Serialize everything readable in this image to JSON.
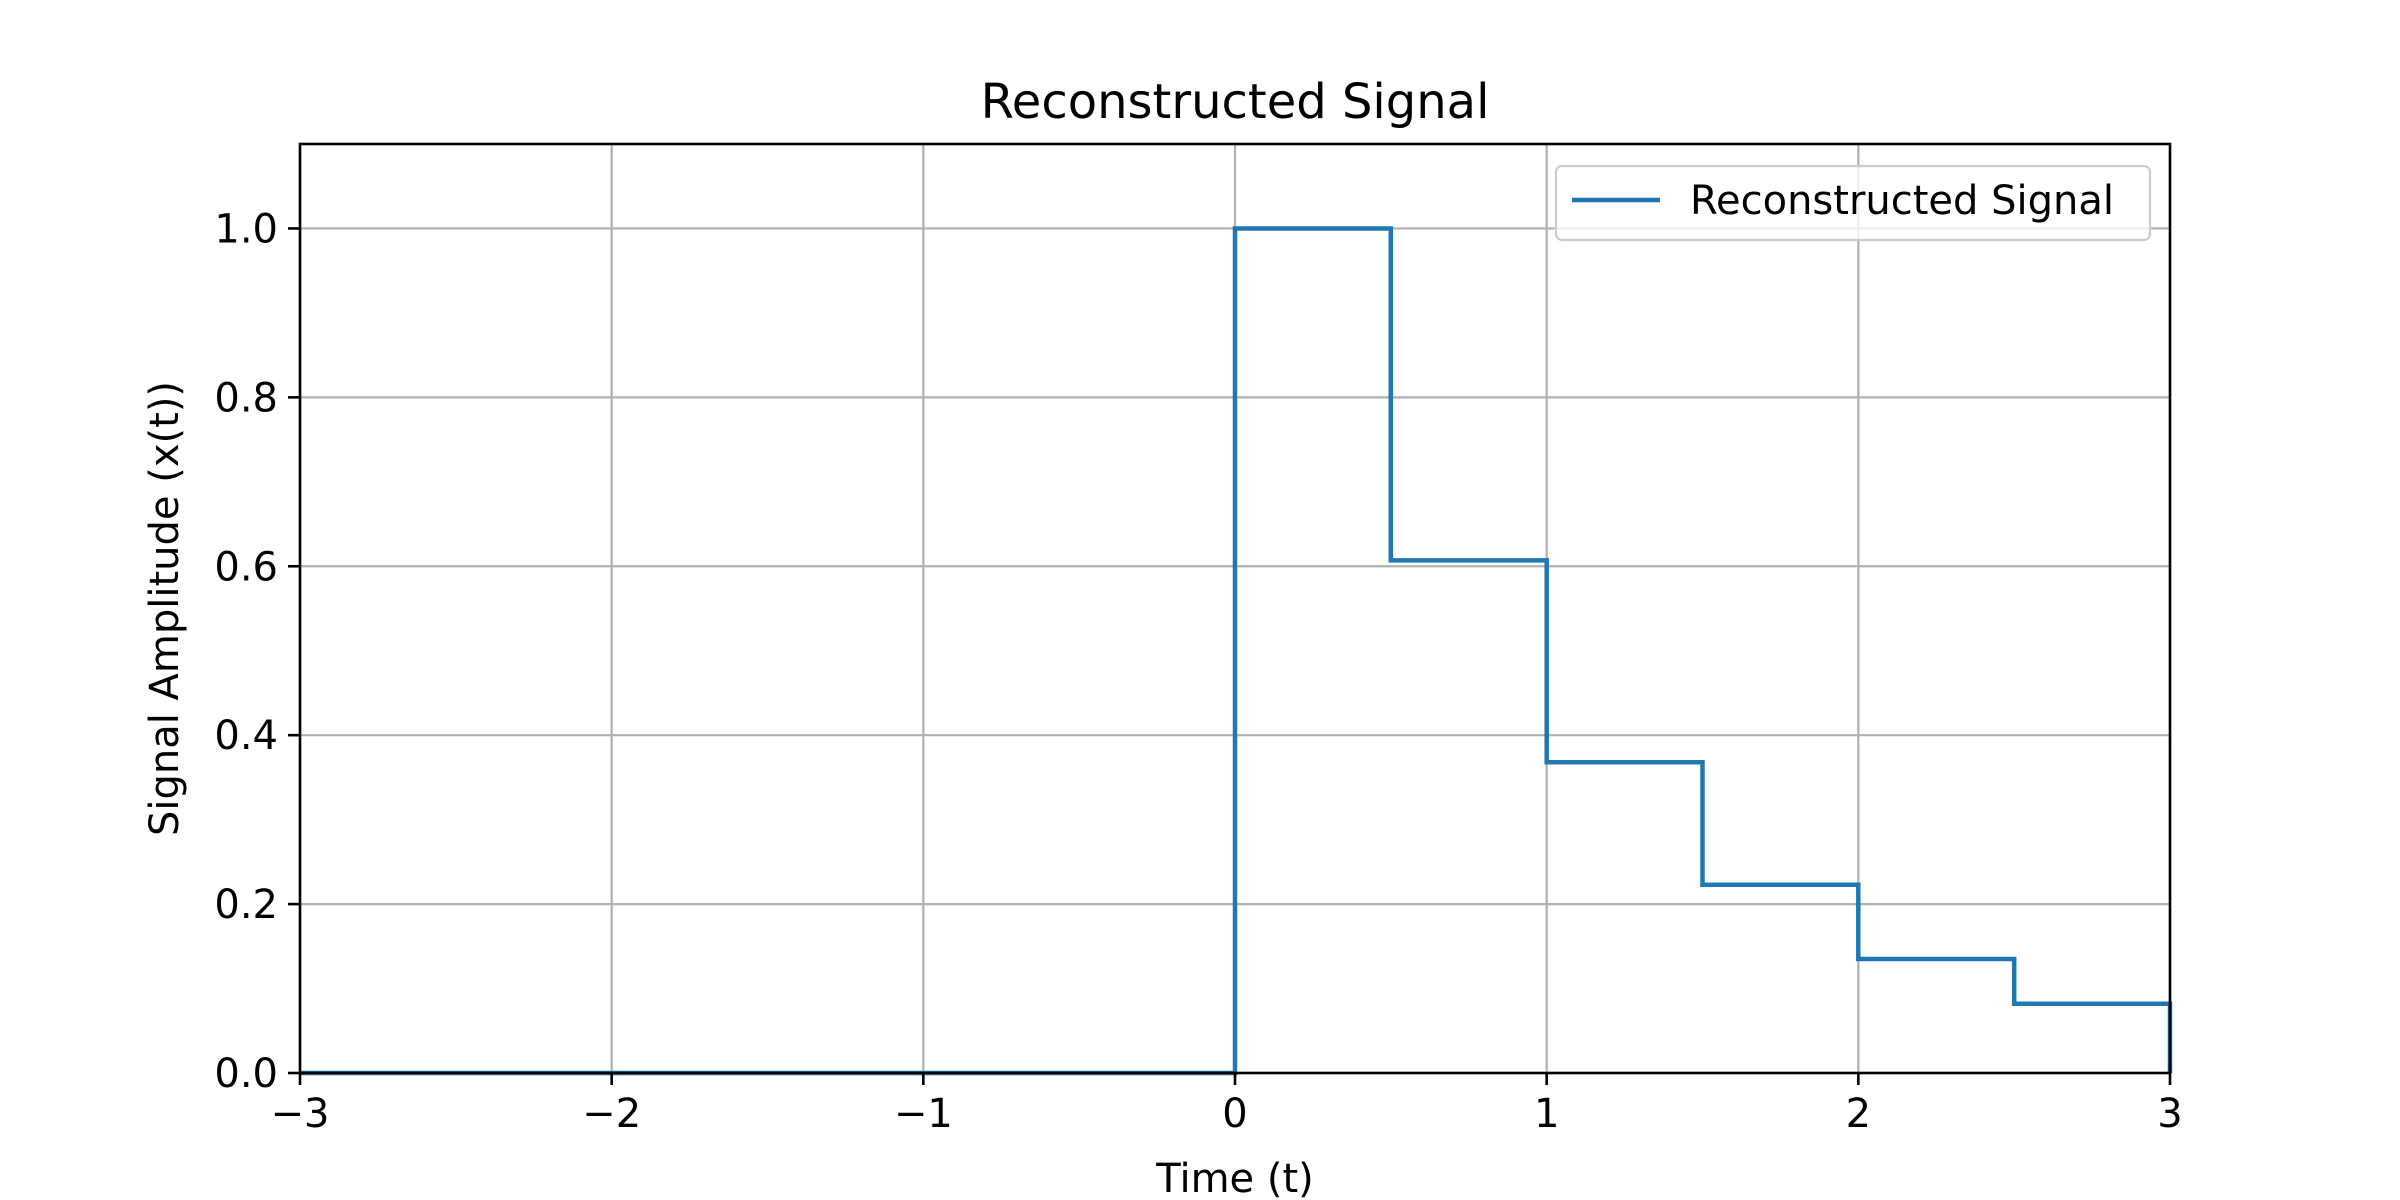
{
  "chart_data": {
    "type": "line",
    "title": "Reconstructed Signal",
    "xlabel": "Time (t)",
    "ylabel": "Signal Amplitude (x(t))",
    "xlim": [
      -3,
      3
    ],
    "ylim": [
      0,
      1.1
    ],
    "x_ticks": [
      -3,
      -2,
      -1,
      0,
      1,
      2,
      3
    ],
    "x_tick_labels": [
      "−3",
      "−2",
      "−1",
      "0",
      "1",
      "2",
      "3"
    ],
    "y_ticks": [
      0.0,
      0.2,
      0.4,
      0.6,
      0.8,
      1.0
    ],
    "y_tick_labels": [
      "0.0",
      "0.2",
      "0.4",
      "0.6",
      "0.8",
      "1.0"
    ],
    "grid": true,
    "legend_position": "top-right",
    "series": [
      {
        "name": "Reconstructed Signal",
        "color": "#1f77b4",
        "points": [
          [
            -3,
            0
          ],
          [
            0,
            0
          ],
          [
            0,
            1.0
          ],
          [
            0.5,
            1.0
          ],
          [
            0.5,
            0.607
          ],
          [
            1.0,
            0.607
          ],
          [
            1.0,
            0.368
          ],
          [
            1.5,
            0.368
          ],
          [
            1.5,
            0.223
          ],
          [
            2.0,
            0.223
          ],
          [
            2.0,
            0.135
          ],
          [
            2.5,
            0.135
          ],
          [
            2.5,
            0.082
          ],
          [
            3.0,
            0.082
          ],
          [
            3.0,
            0
          ]
        ]
      }
    ]
  }
}
